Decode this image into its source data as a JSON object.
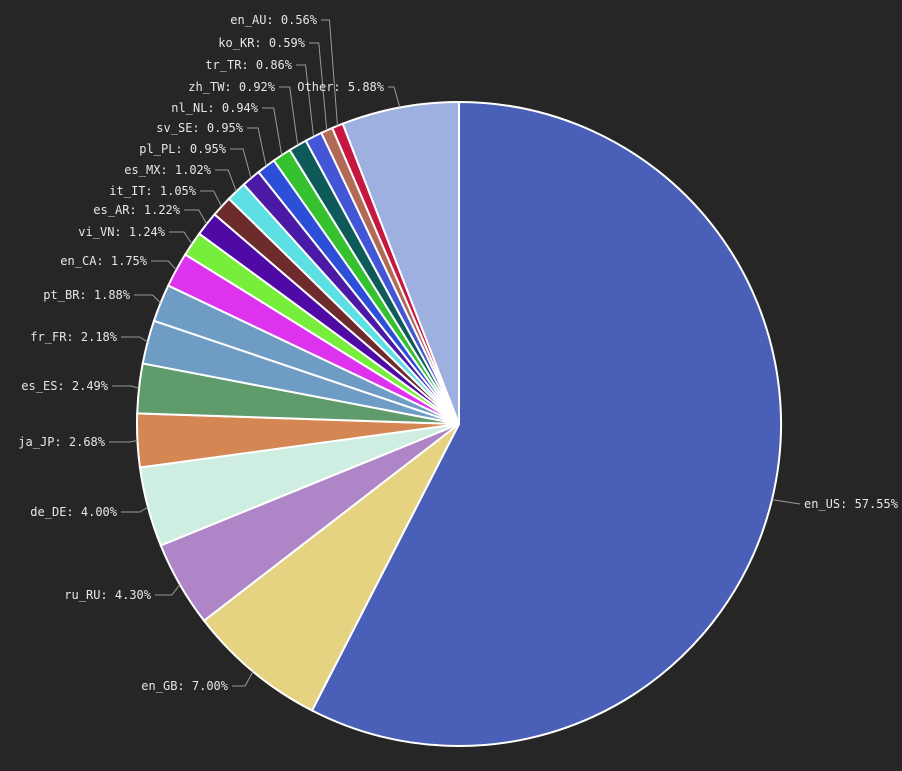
{
  "chart_data": {
    "type": "pie",
    "title": "",
    "start_angle_deg": 0,
    "direction": "clockwise",
    "slices": [
      {
        "label": "en_US",
        "value": 57.55,
        "display": "en_US: 57.55%",
        "color": "#4a5fb8"
      },
      {
        "label": "en_GB",
        "value": 7.0,
        "display": "en_GB: 7.00%",
        "color": "#e6d381"
      },
      {
        "label": "ru_RU",
        "value": 4.3,
        "display": "ru_RU: 4.30%",
        "color": "#ae85c6"
      },
      {
        "label": "de_DE",
        "value": 4.0,
        "display": "de_DE: 4.00%",
        "color": "#cdeee0"
      },
      {
        "label": "ja_JP",
        "value": 2.68,
        "display": "ja_JP: 2.68%",
        "color": "#d48752"
      },
      {
        "label": "es_ES",
        "value": 2.49,
        "display": "es_ES: 2.49%",
        "color": "#5f9b6b"
      },
      {
        "label": "fr_FR",
        "value": 2.18,
        "display": "fr_FR: 2.18%",
        "color": "#6e9cc5"
      },
      {
        "label": "pt_BR",
        "value": 1.88,
        "display": "pt_BR: 1.88%",
        "color": "#6e9cc5"
      },
      {
        "label": "en_CA",
        "value": 1.75,
        "display": "en_CA: 1.75%",
        "color": "#dd32ee"
      },
      {
        "label": "vi_VN",
        "value": 1.24,
        "display": "vi_VN: 1.24%",
        "color": "#77ee3c"
      },
      {
        "label": "es_AR",
        "value": 1.22,
        "display": "es_AR: 1.22%",
        "color": "#4f0aa6"
      },
      {
        "label": "it_IT",
        "value": 1.05,
        "display": "it_IT: 1.05%",
        "color": "#6e2b2b"
      },
      {
        "label": "es_MX",
        "value": 1.02,
        "display": "es_MX: 1.02%",
        "color": "#5de0e3"
      },
      {
        "label": "pl_PL",
        "value": 0.95,
        "display": "pl_PL: 0.95%",
        "color": "#4a1aa6"
      },
      {
        "label": "sv_SE",
        "value": 0.95,
        "display": "sv_SE: 0.95%",
        "color": "#2d4ed6"
      },
      {
        "label": "nl_NL",
        "value": 0.94,
        "display": "nl_NL: 0.94%",
        "color": "#36c12f"
      },
      {
        "label": "zh_TW",
        "value": 0.92,
        "display": "zh_TW: 0.92%",
        "color": "#0e5a5a"
      },
      {
        "label": "tr_TR",
        "value": 0.86,
        "display": "tr_TR: 0.86%",
        "color": "#4357d6"
      },
      {
        "label": "ko_KR",
        "value": 0.59,
        "display": "ko_KR: 0.59%",
        "color": "#b06a55"
      },
      {
        "label": "en_AU",
        "value": 0.56,
        "display": "en_AU: 0.56%",
        "color": "#c5173f"
      },
      {
        "label": "Other",
        "value": 5.88,
        "display": "Other: 5.88%",
        "color": "#9db0e0"
      }
    ]
  }
}
